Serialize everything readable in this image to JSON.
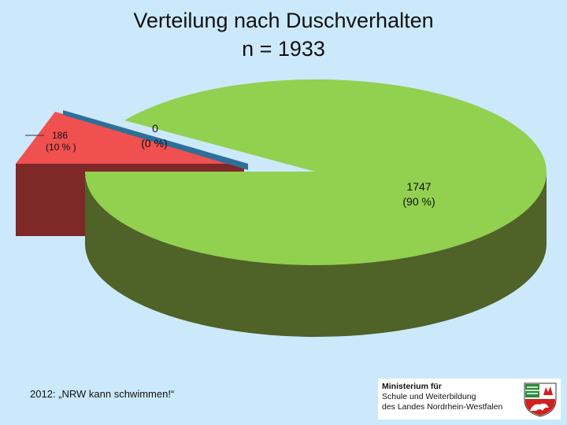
{
  "title": {
    "line1": "Verteilung nach Duschverhalten",
    "line2": "n = 1933"
  },
  "chart_data": {
    "type": "pie",
    "title": "Verteilung nach Duschverhalten",
    "subtitle": "n = 1933",
    "total": 1933,
    "slices": [
      {
        "label": "186",
        "percent_label": "(10 % )",
        "value": 186,
        "color": "#f05050"
      },
      {
        "label": "0",
        "percent_label": "(0 %)",
        "value": 0,
        "color": "#2e6f98"
      },
      {
        "label": "1747",
        "percent_label": "(90 %)",
        "value": 1747,
        "color": "#92d050"
      }
    ],
    "style": "3d-exploded"
  },
  "footer": {
    "text": "2012: „NRW kann schwimmen!“"
  },
  "logo": {
    "line1": "Ministerium für",
    "line2": "Schule und Weiterbildung",
    "line3": "des Landes Nordrhein-Westfalen"
  },
  "colors": {
    "background": "#cbe9fb",
    "green_top": "#92d050",
    "green_side": "#4f6228",
    "red_top": "#f05050",
    "red_side": "#7f2828",
    "blue_edge": "#2e6f98"
  }
}
